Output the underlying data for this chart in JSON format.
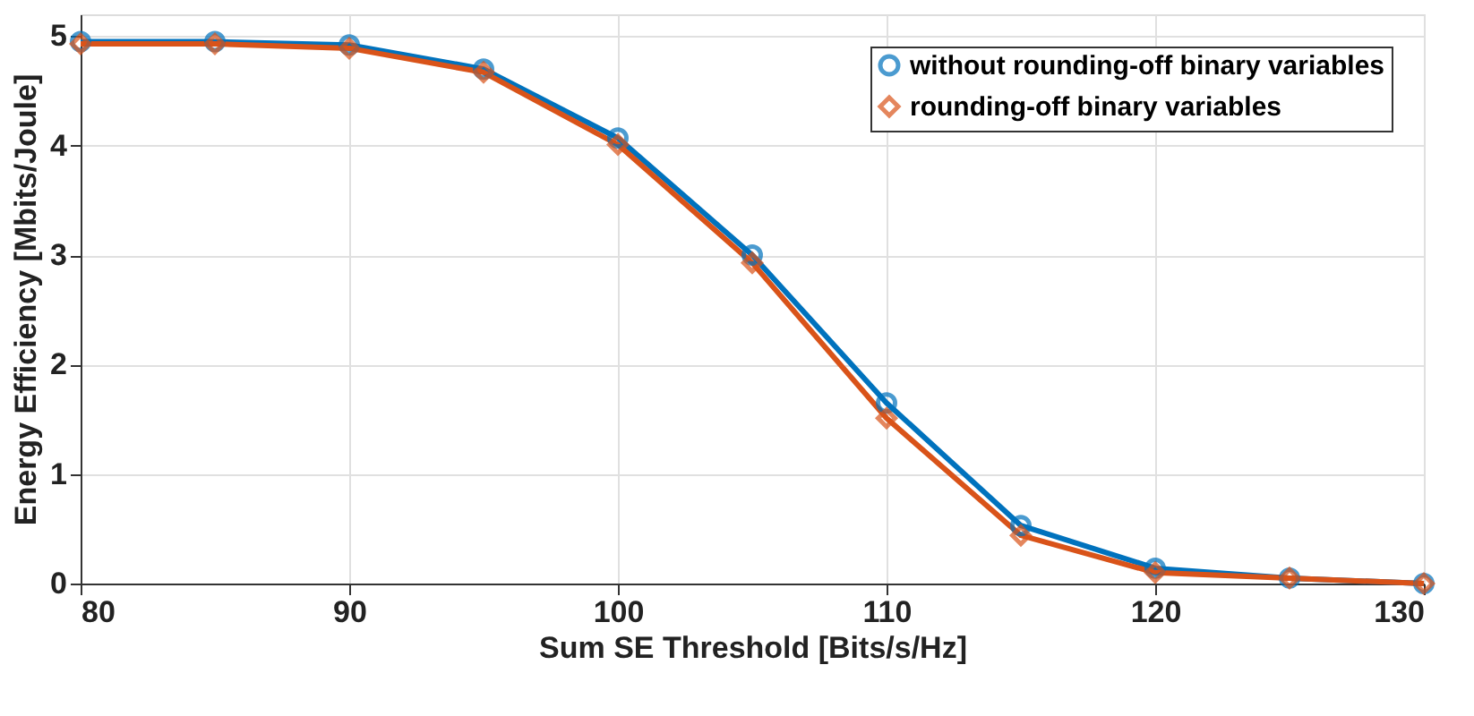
{
  "chart_data": {
    "type": "line",
    "xlabel": "Sum SE Threshold [Bits/s/Hz]",
    "ylabel": "Energy Efficiency [Mbits/Joule]",
    "x": [
      80,
      85,
      90,
      95,
      100,
      105,
      110,
      115,
      120,
      125,
      130
    ],
    "series": [
      {
        "name": "without rounding-off binary variables",
        "color": "#0072bd",
        "marker": "circle",
        "values": [
          4.95,
          4.95,
          4.92,
          4.7,
          4.07,
          3.0,
          1.65,
          0.53,
          0.14,
          0.05,
          0.0
        ]
      },
      {
        "name": "rounding-off binary variables",
        "color": "#d95319",
        "marker": "diamond",
        "values": [
          4.93,
          4.93,
          4.89,
          4.67,
          4.01,
          2.93,
          1.51,
          0.44,
          0.1,
          0.05,
          0.0
        ]
      }
    ],
    "xlim": [
      80,
      130
    ],
    "xticks": [
      80,
      90,
      100,
      110,
      120,
      130
    ],
    "ylim": [
      0,
      5.2
    ],
    "yticks": [
      0,
      1,
      2,
      3,
      4,
      5
    ],
    "grid": true,
    "legend": "top right",
    "line_style": "solid"
  }
}
